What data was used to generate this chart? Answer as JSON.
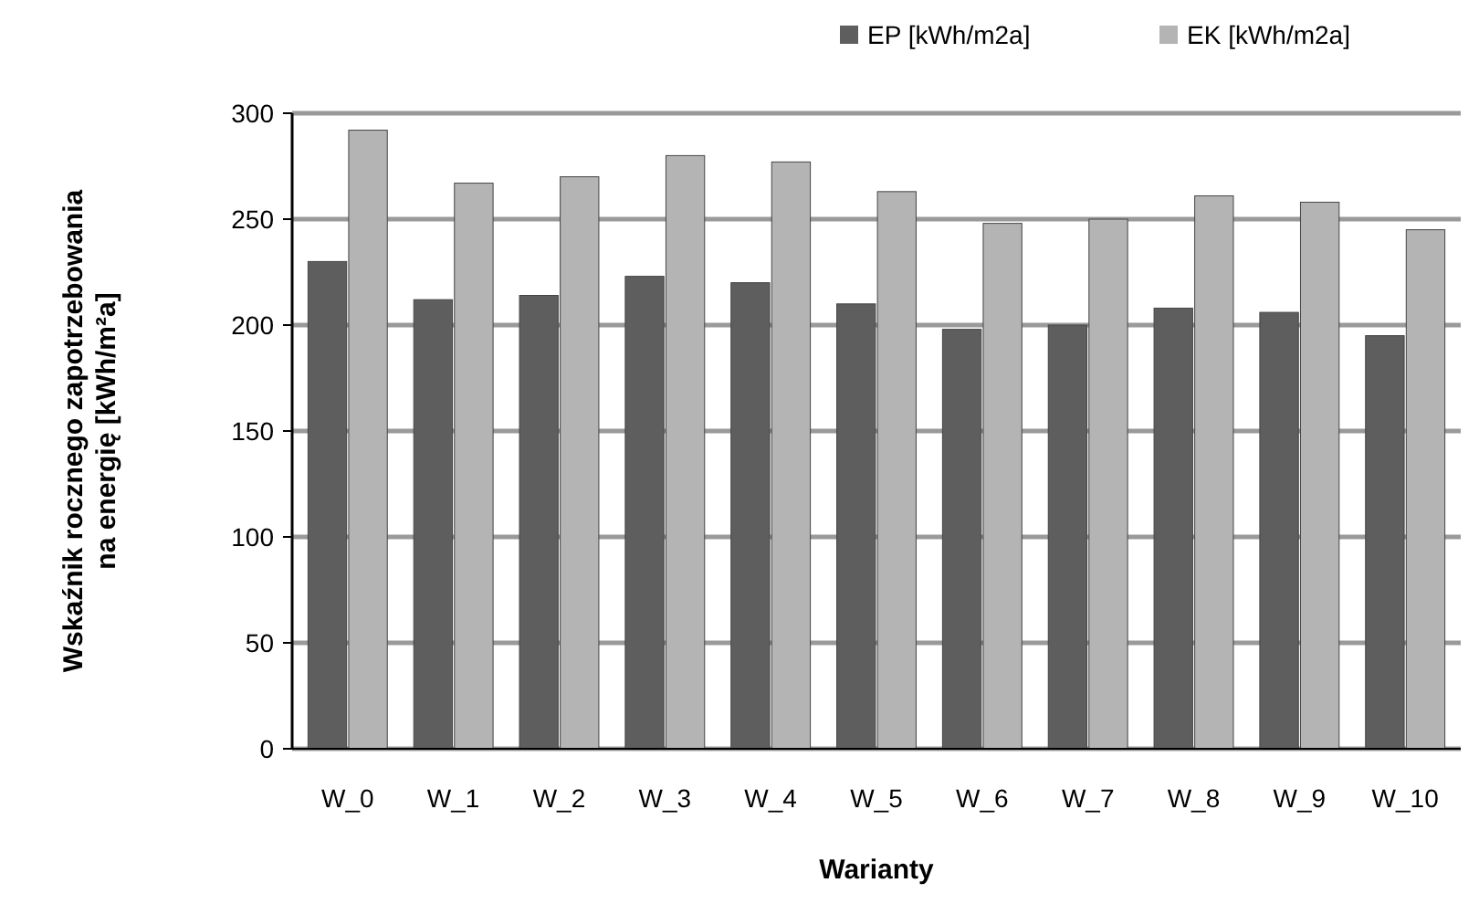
{
  "chart_data": {
    "type": "bar",
    "xlabel": "Warianty",
    "ylabel": "Wskaźnik rocznego zapotrzebowania na energię  [kWh/m²a]",
    "categories": [
      "W_0",
      "W_1",
      "W_2",
      "W_3",
      "W_4",
      "W_5",
      "W_6",
      "W_7",
      "W_8",
      "W_9",
      "W_10"
    ],
    "series": [
      {
        "name": "EP [kWh/m2a]",
        "color": "#5e5e5e",
        "values": [
          230,
          212,
          214,
          223,
          220,
          210,
          198,
          200,
          208,
          206,
          195
        ]
      },
      {
        "name": "EK [kWh/m2a]",
        "color": "#b4b4b4",
        "values": [
          292,
          267,
          270,
          280,
          277,
          263,
          248,
          250,
          261,
          258,
          245
        ]
      }
    ],
    "ylim": [
      0,
      300
    ],
    "yticks": [
      0,
      50,
      100,
      150,
      200,
      250,
      300
    ],
    "grid": "y",
    "legend": "top right"
  }
}
